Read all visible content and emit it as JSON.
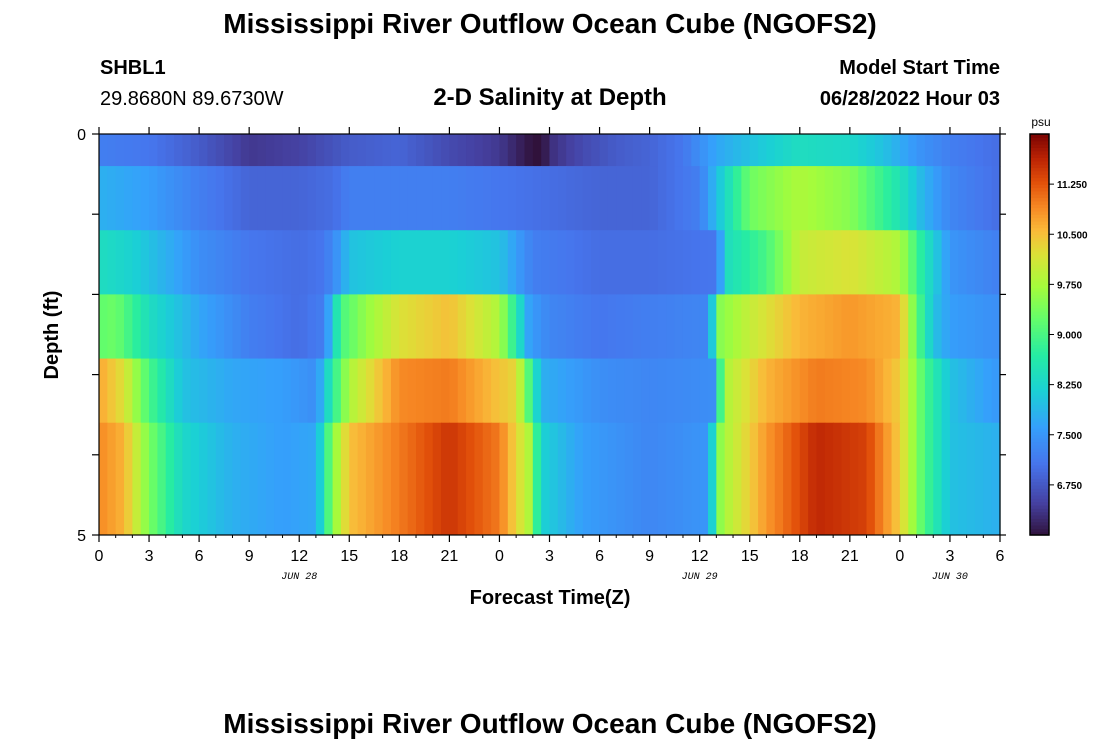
{
  "header": {
    "title": "Mississippi River Outflow Ocean Cube (NGOFS2)",
    "station": "SHBL1",
    "coords": "29.8680N  89.6730W",
    "subtitle": "2-D Salinity at Depth",
    "start_label": "Model Start Time",
    "start_value": "06/28/2022 Hour 03"
  },
  "footer": {
    "title": "Mississippi River Outflow Ocean Cube (NGOFS2)"
  },
  "colors": {
    "background": "#ffffff",
    "axis": "#000000"
  },
  "chart_data": {
    "type": "heatmap",
    "xlabel": "Forecast Time(Z)",
    "ylabel": "Depth (ft)",
    "x_tick_labels": [
      "0",
      "3",
      "6",
      "9",
      "12",
      "15",
      "18",
      "21",
      "0",
      "3",
      "6",
      "9",
      "12",
      "15",
      "18",
      "21",
      "0",
      "3",
      "6"
    ],
    "date_labels": [
      {
        "hour_index": 12,
        "label": "JUN 28"
      },
      {
        "hour_index": 36,
        "label": "JUN 29"
      },
      {
        "hour_index": 51,
        "label": "JUN 30"
      }
    ],
    "x_range_hours": [
      0,
      54
    ],
    "y_tick_labels": [
      "0",
      "5"
    ],
    "ylim": [
      0,
      5
    ],
    "depth_layer_count": 6,
    "colorbar": {
      "unit": "psu",
      "min": 6.0,
      "max": 12.0,
      "tick_labels": [
        "11.250",
        "10.500",
        "9.750",
        "9.000",
        "8.250",
        "7.500",
        "6.750"
      ],
      "tick_values": [
        11.25,
        10.5,
        9.75,
        9.0,
        8.25,
        7.5,
        6.75
      ]
    },
    "layers": [
      {
        "depth_band": "0-0.4",
        "keyframes": [
          [
            0,
            7.2
          ],
          [
            3,
            7.1
          ],
          [
            6,
            6.8
          ],
          [
            9,
            6.4
          ],
          [
            12,
            6.5
          ],
          [
            15,
            6.8
          ],
          [
            18,
            6.9
          ],
          [
            21,
            6.6
          ],
          [
            24,
            6.4
          ],
          [
            26,
            6.0
          ],
          [
            26.6,
            6.0
          ],
          [
            27,
            6.3
          ],
          [
            29,
            6.6
          ],
          [
            31,
            6.8
          ],
          [
            33,
            6.9
          ],
          [
            35,
            7.1
          ],
          [
            37,
            7.7
          ],
          [
            39,
            8.0
          ],
          [
            42,
            8.4
          ],
          [
            45,
            8.3
          ],
          [
            47,
            8.0
          ],
          [
            49,
            7.5
          ],
          [
            51,
            7.2
          ],
          [
            54,
            7.0
          ]
        ]
      },
      {
        "depth_band": "0.4-1.2",
        "keyframes": [
          [
            0,
            7.8
          ],
          [
            3,
            7.6
          ],
          [
            6,
            7.2
          ],
          [
            9,
            6.9
          ],
          [
            12,
            6.9
          ],
          [
            14,
            7.0
          ],
          [
            15,
            7.2
          ],
          [
            18,
            7.2
          ],
          [
            21,
            7.2
          ],
          [
            24,
            7.1
          ],
          [
            27,
            7.0
          ],
          [
            30,
            6.9
          ],
          [
            33,
            6.9
          ],
          [
            36,
            7.2
          ],
          [
            37.5,
            8.3
          ],
          [
            39,
            9.3
          ],
          [
            42,
            9.8
          ],
          [
            45,
            9.5
          ],
          [
            48,
            8.5
          ],
          [
            49.5,
            7.8
          ],
          [
            51,
            7.3
          ],
          [
            54,
            7.0
          ]
        ]
      },
      {
        "depth_band": "1.2-2.0",
        "keyframes": [
          [
            0,
            8.4
          ],
          [
            2,
            8.2
          ],
          [
            4,
            7.8
          ],
          [
            6,
            7.4
          ],
          [
            9,
            7.1
          ],
          [
            12,
            7.0
          ],
          [
            13.5,
            7.1
          ],
          [
            14.5,
            7.6
          ],
          [
            15,
            8.0
          ],
          [
            18,
            8.2
          ],
          [
            21,
            8.2
          ],
          [
            24,
            8.0
          ],
          [
            26,
            7.2
          ],
          [
            30,
            7.0
          ],
          [
            33,
            7.0
          ],
          [
            37,
            7.1
          ],
          [
            37.6,
            8.4
          ],
          [
            40,
            9.0
          ],
          [
            42,
            10.0
          ],
          [
            45,
            10.2
          ],
          [
            48,
            9.8
          ],
          [
            49.5,
            8.5
          ],
          [
            51,
            7.5
          ],
          [
            54,
            7.2
          ]
        ]
      },
      {
        "depth_band": "2.0-2.8",
        "keyframes": [
          [
            0,
            9.2
          ],
          [
            1,
            9.3
          ],
          [
            3,
            8.4
          ],
          [
            6,
            7.7
          ],
          [
            9,
            7.2
          ],
          [
            12,
            7.0
          ],
          [
            13.5,
            7.2
          ],
          [
            14.5,
            9.0
          ],
          [
            16,
            9.6
          ],
          [
            18,
            10.2
          ],
          [
            21,
            10.5
          ],
          [
            24,
            9.8
          ],
          [
            25,
            8.6
          ],
          [
            25.8,
            7.6
          ],
          [
            27,
            7.3
          ],
          [
            30,
            7.1
          ],
          [
            33,
            7.2
          ],
          [
            36.5,
            7.3
          ],
          [
            37.2,
            9.5
          ],
          [
            39,
            10.0
          ],
          [
            42,
            10.6
          ],
          [
            45,
            10.8
          ],
          [
            48,
            10.6
          ],
          [
            49,
            9.2
          ],
          [
            50,
            8.0
          ],
          [
            51,
            7.6
          ],
          [
            54,
            7.4
          ]
        ]
      },
      {
        "depth_band": "2.8-3.6",
        "keyframes": [
          [
            0,
            10.7
          ],
          [
            1.5,
            10.2
          ],
          [
            3,
            9.0
          ],
          [
            5,
            8.0
          ],
          [
            8,
            7.7
          ],
          [
            11,
            7.6
          ],
          [
            13,
            7.4
          ],
          [
            14,
            8.7
          ],
          [
            15,
            9.8
          ],
          [
            18,
            10.9
          ],
          [
            21,
            11.0
          ],
          [
            25,
            10.3
          ],
          [
            25.8,
            9.0
          ],
          [
            26.5,
            7.8
          ],
          [
            30,
            7.4
          ],
          [
            33,
            7.3
          ],
          [
            36.8,
            7.4
          ],
          [
            37.5,
            9.8
          ],
          [
            40,
            10.6
          ],
          [
            43,
            11.0
          ],
          [
            46,
            10.9
          ],
          [
            48,
            10.4
          ],
          [
            49.5,
            9.0
          ],
          [
            51,
            8.0
          ],
          [
            54,
            7.5
          ]
        ]
      },
      {
        "depth_band": "3.6-5.0",
        "keyframes": [
          [
            0,
            10.9
          ],
          [
            1.5,
            10.6
          ],
          [
            3,
            9.4
          ],
          [
            5,
            8.3
          ],
          [
            8,
            7.8
          ],
          [
            11,
            7.6
          ],
          [
            13,
            7.7
          ],
          [
            14,
            9.5
          ],
          [
            15,
            10.5
          ],
          [
            18,
            11.0
          ],
          [
            21,
            11.5
          ],
          [
            24,
            11.0
          ],
          [
            25.8,
            9.8
          ],
          [
            26.5,
            8.2
          ],
          [
            29,
            7.6
          ],
          [
            33,
            7.3
          ],
          [
            36.5,
            7.5
          ],
          [
            37.3,
            9.7
          ],
          [
            40,
            10.8
          ],
          [
            43,
            11.6
          ],
          [
            46,
            11.4
          ],
          [
            48,
            10.4
          ],
          [
            49.5,
            9.0
          ],
          [
            51,
            8.0
          ],
          [
            54,
            7.8
          ]
        ]
      }
    ]
  }
}
